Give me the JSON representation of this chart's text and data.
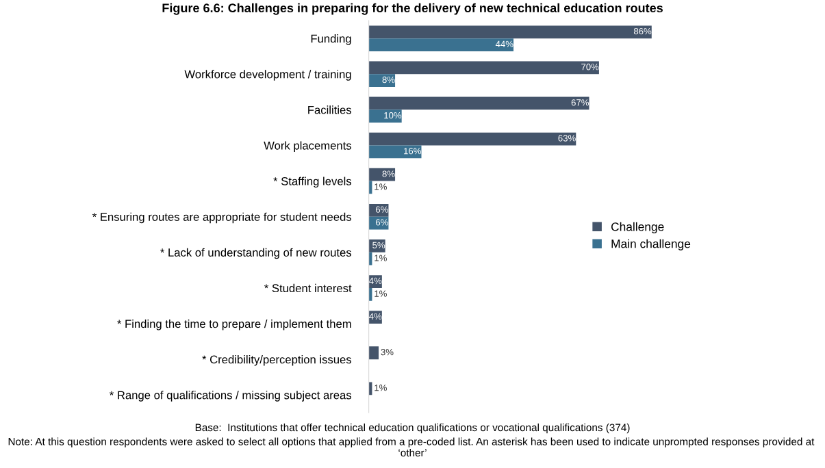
{
  "chart_data": {
    "type": "bar",
    "orientation": "horizontal",
    "title": "Figure 6.6: Challenges in preparing for the delivery of new technical education routes",
    "categories": [
      "Funding",
      "Workforce development / training",
      "Facilities",
      "Work placements",
      "* Staffing levels",
      "* Ensuring routes are appropriate for student needs",
      "* Lack of understanding of new routes",
      "* Student interest",
      "* Finding the time to prepare / implement them",
      "* Credibility/perception issues",
      "* Range of qualifications / missing subject areas"
    ],
    "series": [
      {
        "name": "Challenge",
        "color": "#44546a",
        "values": [
          86,
          70,
          67,
          63,
          8,
          6,
          5,
          4,
          4,
          3,
          1
        ],
        "value_labels": [
          "86%",
          "70%",
          "67%",
          "63%",
          "8%",
          "6%",
          "5%",
          "4%",
          "4%",
          "3%",
          "1%"
        ]
      },
      {
        "name": "Main challenge",
        "color": "#3a7190",
        "values": [
          44,
          8,
          10,
          16,
          1,
          6,
          1,
          1,
          null,
          null,
          null
        ],
        "value_labels": [
          "44%",
          "8%",
          "10%",
          "16%",
          "1%",
          "6%",
          "1%",
          "1%",
          null,
          null,
          null
        ]
      }
    ],
    "legend": "right",
    "annotations": [
      "Base:  Institutions that offer technical education qualifications or vocational qualifications (374)",
      "Note: At this question respondents were asked to select all options that applied from a pre-coded list. An asterisk has been used to indicate unprompted responses provided at  ‘other’"
    ]
  }
}
